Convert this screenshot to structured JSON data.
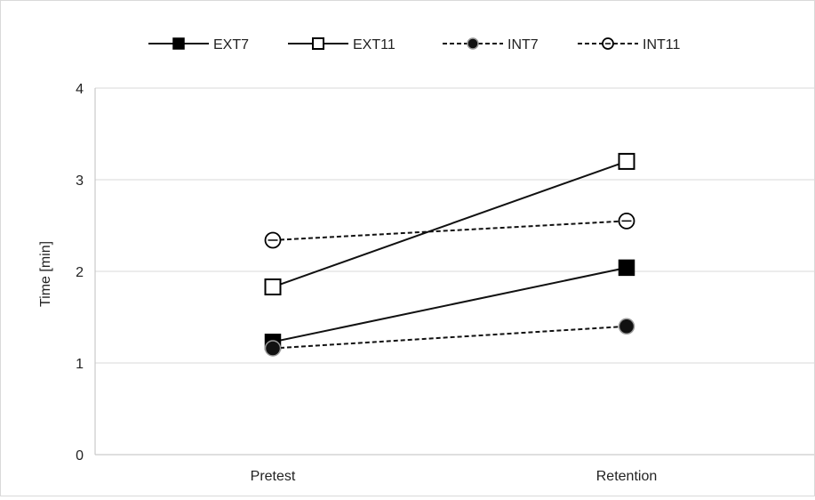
{
  "chart_data": {
    "type": "line",
    "title": "",
    "xlabel": "",
    "ylabel": "Time [min]",
    "categories": [
      "Pretest",
      "Retention"
    ],
    "ylim": [
      0,
      4
    ],
    "yticks": [
      "0",
      "1",
      "2",
      "3",
      "4"
    ],
    "grid": true,
    "legend_position": "top",
    "series": [
      {
        "name": "EXT7",
        "values": [
          1.23,
          2.04
        ],
        "line_style": "solid",
        "marker": "filled-square",
        "color": "#111111"
      },
      {
        "name": "EXT11",
        "values": [
          1.83,
          3.2
        ],
        "line_style": "solid",
        "marker": "open-square",
        "color": "#111111"
      },
      {
        "name": "INT7",
        "values": [
          1.16,
          1.4
        ],
        "line_style": "dashed",
        "marker": "filled-circle",
        "color": "#111111"
      },
      {
        "name": "INT11",
        "values": [
          2.34,
          2.55
        ],
        "line_style": "dashed",
        "marker": "open-circle",
        "color": "#111111"
      }
    ]
  }
}
